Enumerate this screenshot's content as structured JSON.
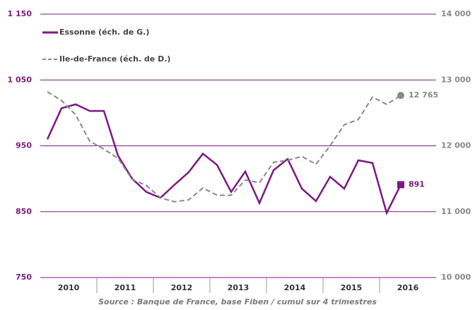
{
  "chart_data": {
    "type": "line",
    "source": "Source : Banque de France, base Fiben / cumul sur 4 trimestres",
    "x": [
      2010.125,
      2010.375,
      2010.625,
      2010.875,
      2011.125,
      2011.375,
      2011.625,
      2011.875,
      2012.125,
      2012.375,
      2012.625,
      2012.875,
      2013.125,
      2013.375,
      2013.625,
      2013.875,
      2014.125,
      2014.375,
      2014.625,
      2014.875,
      2015.125,
      2015.375,
      2015.625,
      2015.875,
      2016.125,
      2016.375
    ],
    "xlim": [
      2010,
      2017
    ],
    "xticks": [
      {
        "value": 2010.5,
        "label": "2010"
      },
      {
        "value": 2011.5,
        "label": "2011"
      },
      {
        "value": 2012.5,
        "label": "2012"
      },
      {
        "value": 2013.5,
        "label": "2013"
      },
      {
        "value": 2014.5,
        "label": "2014"
      },
      {
        "value": 2015.5,
        "label": "2015"
      },
      {
        "value": 2016.5,
        "label": "2016"
      }
    ],
    "ylim": [
      750,
      1150
    ],
    "yticks": [
      {
        "value": 750,
        "label": "750"
      },
      {
        "value": 850,
        "label": "850"
      },
      {
        "value": 950,
        "label": "950"
      },
      {
        "value": 1050,
        "label": "1 050"
      },
      {
        "value": 1150,
        "label": "1 150"
      }
    ],
    "y2lim": [
      10000,
      14000
    ],
    "y2ticks": [
      {
        "value": 10000,
        "label": "10 000"
      },
      {
        "value": 11000,
        "label": "11 000"
      },
      {
        "value": 12000,
        "label": "12 000"
      },
      {
        "value": 13000,
        "label": "13 000"
      },
      {
        "value": 14000,
        "label": "14 000"
      }
    ],
    "grid": true,
    "legend": "upper left",
    "series": [
      {
        "name": "Essonne (éch. de G.)",
        "color": "#7b1a7f",
        "dash": false,
        "marker": "square",
        "values": [
          960,
          1007,
          1013,
          1003,
          1003,
          935,
          900,
          880,
          871,
          891,
          910,
          938,
          921,
          880,
          911,
          863,
          913,
          930,
          885,
          866,
          903,
          885,
          928,
          924,
          848,
          891
        ],
        "value_labels": [
          null,
          null,
          null,
          null,
          null,
          null,
          null,
          null,
          null,
          null,
          null,
          null,
          null,
          null,
          null,
          null,
          null,
          null,
          null,
          null,
          null,
          null,
          null,
          null,
          null,
          "891"
        ]
      },
      {
        "name": "Ile-de-France (éch. de D.)",
        "color": "#888888",
        "dash": true,
        "marker": "circle",
        "axis": "y2",
        "values": [
          12820,
          12690,
          12470,
          12070,
          11950,
          11810,
          11490,
          11400,
          11210,
          11150,
          11180,
          11360,
          11250,
          11250,
          11480,
          11440,
          11750,
          11780,
          11840,
          11720,
          12000,
          12320,
          12400,
          12740,
          12630,
          12765
        ],
        "value_labels": [
          null,
          null,
          null,
          null,
          null,
          null,
          null,
          null,
          null,
          null,
          null,
          null,
          null,
          null,
          null,
          null,
          null,
          null,
          null,
          null,
          null,
          null,
          null,
          null,
          null,
          "12 765"
        ]
      }
    ]
  }
}
